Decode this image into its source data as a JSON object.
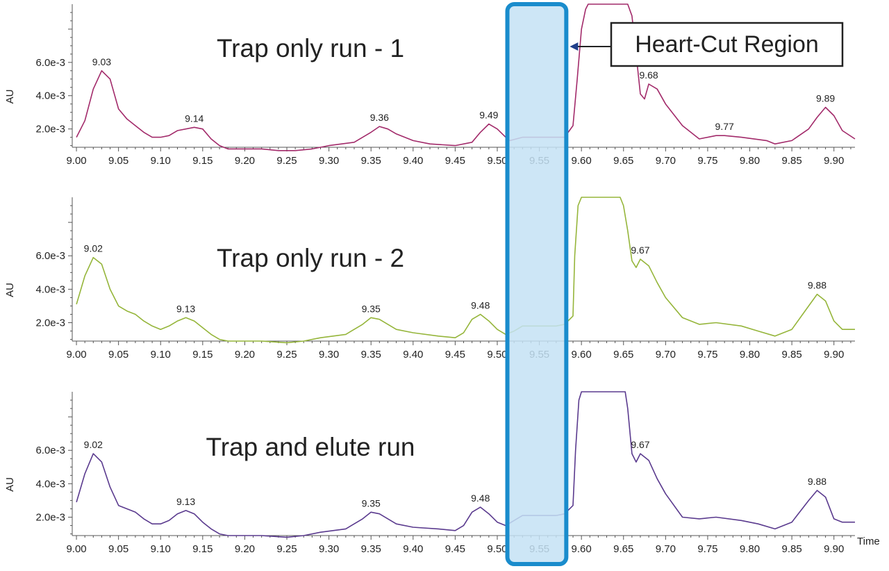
{
  "heart_cut": {
    "label": "Heart-Cut Region",
    "x_range": [
      9.512,
      9.582
    ],
    "fill_color": "#c4e2f4",
    "border_color": "#1a8ccc"
  },
  "x_axis": {
    "label": "Time",
    "ticks": [
      "9.00",
      "9.05",
      "9.10",
      "9.15",
      "9.20",
      "9.25",
      "9.30",
      "9.35",
      "9.40",
      "9.45",
      "9.50",
      "9.55",
      "9.60",
      "9.65",
      "9.70",
      "9.75",
      "9.80",
      "9.85",
      "9.90"
    ]
  },
  "chart_data": [
    {
      "type": "line",
      "title": "Trap only run - 1",
      "ylabel": "AU",
      "y_ticks": [
        "2.0e-3",
        "4.0e-3",
        "6.0e-3"
      ],
      "xlim": [
        8.995,
        9.925
      ],
      "ylim": [
        0.0009,
        0.0095
      ],
      "color": "#a22a6a",
      "flat_top": [
        9.608,
        9.655
      ],
      "peak_labels": [
        {
          "text": "9.03",
          "x": 9.03,
          "y": 0.0055
        },
        {
          "text": "9.14",
          "x": 9.14,
          "y": 0.0021
        },
        {
          "text": "9.36",
          "x": 9.36,
          "y": 0.00215
        },
        {
          "text": "9.49",
          "x": 9.49,
          "y": 0.0023
        },
        {
          "text": "9.68",
          "x": 9.68,
          "y": 0.0047
        },
        {
          "text": "9.77",
          "x": 9.77,
          "y": 0.0016
        },
        {
          "text": "9.89",
          "x": 9.89,
          "y": 0.0033
        }
      ],
      "points": [
        [
          9.0,
          0.0015
        ],
        [
          9.01,
          0.0025
        ],
        [
          9.02,
          0.0044
        ],
        [
          9.03,
          0.0055
        ],
        [
          9.04,
          0.005
        ],
        [
          9.05,
          0.0032
        ],
        [
          9.06,
          0.0026
        ],
        [
          9.07,
          0.0022
        ],
        [
          9.08,
          0.0018
        ],
        [
          9.09,
          0.0015
        ],
        [
          9.1,
          0.0015
        ],
        [
          9.11,
          0.0016
        ],
        [
          9.12,
          0.0019
        ],
        [
          9.14,
          0.0021
        ],
        [
          9.15,
          0.002
        ],
        [
          9.16,
          0.0014
        ],
        [
          9.17,
          0.001
        ],
        [
          9.18,
          0.0008
        ],
        [
          9.19,
          0.0008
        ],
        [
          9.2,
          0.0008
        ],
        [
          9.22,
          0.0008
        ],
        [
          9.24,
          0.0007
        ],
        [
          9.26,
          0.0007
        ],
        [
          9.28,
          0.0008
        ],
        [
          9.3,
          0.001
        ],
        [
          9.33,
          0.0012
        ],
        [
          9.35,
          0.0018
        ],
        [
          9.36,
          0.00215
        ],
        [
          9.37,
          0.002
        ],
        [
          9.38,
          0.0017
        ],
        [
          9.4,
          0.0013
        ],
        [
          9.42,
          0.0011
        ],
        [
          9.45,
          0.001
        ],
        [
          9.47,
          0.0012
        ],
        [
          9.48,
          0.0018
        ],
        [
          9.49,
          0.0023
        ],
        [
          9.5,
          0.002
        ],
        [
          9.51,
          0.0015
        ],
        [
          9.515,
          0.0013
        ],
        [
          9.53,
          0.0015
        ],
        [
          9.55,
          0.0015
        ],
        [
          9.57,
          0.0015
        ],
        [
          9.58,
          0.0015
        ],
        [
          9.59,
          0.0022
        ],
        [
          9.595,
          0.005
        ],
        [
          9.6,
          0.008
        ],
        [
          9.605,
          0.0092
        ],
        [
          9.608,
          0.0095
        ],
        [
          9.655,
          0.0095
        ],
        [
          9.66,
          0.0088
        ],
        [
          9.665,
          0.0065
        ],
        [
          9.67,
          0.0041
        ],
        [
          9.675,
          0.0038
        ],
        [
          9.68,
          0.0047
        ],
        [
          9.69,
          0.0044
        ],
        [
          9.7,
          0.0035
        ],
        [
          9.72,
          0.0022
        ],
        [
          9.74,
          0.0014
        ],
        [
          9.76,
          0.0016
        ],
        [
          9.77,
          0.0016
        ],
        [
          9.79,
          0.0015
        ],
        [
          9.82,
          0.0013
        ],
        [
          9.83,
          0.0011
        ],
        [
          9.85,
          0.0013
        ],
        [
          9.87,
          0.002
        ],
        [
          9.88,
          0.0027
        ],
        [
          9.89,
          0.0033
        ],
        [
          9.9,
          0.0028
        ],
        [
          9.91,
          0.0019
        ],
        [
          9.925,
          0.0014
        ]
      ]
    },
    {
      "type": "line",
      "title": "Trap only run - 2",
      "ylabel": "AU",
      "y_ticks": [
        "2.0e-3",
        "4.0e-3",
        "6.0e-3"
      ],
      "xlim": [
        8.995,
        9.925
      ],
      "ylim": [
        0.0009,
        0.0095
      ],
      "color": "#95b53a",
      "flat_top": [
        9.6,
        9.646
      ],
      "peak_labels": [
        {
          "text": "9.02",
          "x": 9.02,
          "y": 0.0059
        },
        {
          "text": "9.13",
          "x": 9.13,
          "y": 0.0023
        },
        {
          "text": "9.35",
          "x": 9.35,
          "y": 0.0023
        },
        {
          "text": "9.48",
          "x": 9.48,
          "y": 0.0025
        },
        {
          "text": "9.67",
          "x": 9.67,
          "y": 0.0058
        },
        {
          "text": "9.88",
          "x": 9.88,
          "y": 0.0037
        }
      ],
      "points": [
        [
          9.0,
          0.0031
        ],
        [
          9.01,
          0.0048
        ],
        [
          9.02,
          0.0059
        ],
        [
          9.03,
          0.0055
        ],
        [
          9.04,
          0.004
        ],
        [
          9.05,
          0.003
        ],
        [
          9.06,
          0.0027
        ],
        [
          9.07,
          0.0025
        ],
        [
          9.08,
          0.0021
        ],
        [
          9.09,
          0.0018
        ],
        [
          9.1,
          0.0016
        ],
        [
          9.11,
          0.0018
        ],
        [
          9.12,
          0.0021
        ],
        [
          9.13,
          0.0023
        ],
        [
          9.14,
          0.0021
        ],
        [
          9.15,
          0.0017
        ],
        [
          9.16,
          0.0013
        ],
        [
          9.17,
          0.001
        ],
        [
          9.18,
          0.0009
        ],
        [
          9.2,
          0.0009
        ],
        [
          9.22,
          0.0009
        ],
        [
          9.25,
          0.0008
        ],
        [
          9.27,
          0.0009
        ],
        [
          9.29,
          0.0011
        ],
        [
          9.32,
          0.0013
        ],
        [
          9.34,
          0.0019
        ],
        [
          9.35,
          0.0023
        ],
        [
          9.36,
          0.0022
        ],
        [
          9.38,
          0.0016
        ],
        [
          9.4,
          0.0014
        ],
        [
          9.43,
          0.0012
        ],
        [
          9.45,
          0.0011
        ],
        [
          9.46,
          0.0014
        ],
        [
          9.47,
          0.0022
        ],
        [
          9.48,
          0.0025
        ],
        [
          9.49,
          0.0021
        ],
        [
          9.5,
          0.0016
        ],
        [
          9.51,
          0.0013
        ],
        [
          9.52,
          0.0015
        ],
        [
          9.53,
          0.0018
        ],
        [
          9.55,
          0.0018
        ],
        [
          9.57,
          0.0018
        ],
        [
          9.58,
          0.0019
        ],
        [
          9.59,
          0.0024
        ],
        [
          9.592,
          0.006
        ],
        [
          9.596,
          0.009
        ],
        [
          9.6,
          0.0095
        ],
        [
          9.646,
          0.0095
        ],
        [
          9.65,
          0.009
        ],
        [
          9.655,
          0.0075
        ],
        [
          9.66,
          0.0057
        ],
        [
          9.665,
          0.0053
        ],
        [
          9.67,
          0.0058
        ],
        [
          9.68,
          0.0054
        ],
        [
          9.69,
          0.0044
        ],
        [
          9.7,
          0.0035
        ],
        [
          9.72,
          0.0023
        ],
        [
          9.74,
          0.0019
        ],
        [
          9.76,
          0.002
        ],
        [
          9.79,
          0.0018
        ],
        [
          9.81,
          0.0015
        ],
        [
          9.83,
          0.0012
        ],
        [
          9.85,
          0.0016
        ],
        [
          9.87,
          0.003
        ],
        [
          9.88,
          0.0037
        ],
        [
          9.89,
          0.0033
        ],
        [
          9.9,
          0.0021
        ],
        [
          9.91,
          0.0016
        ],
        [
          9.925,
          0.0016
        ]
      ]
    },
    {
      "type": "line",
      "title": "Trap and elute run",
      "ylabel": "AU",
      "y_ticks": [
        "2.0e-3",
        "4.0e-3",
        "6.0e-3"
      ],
      "xlim": [
        8.995,
        9.925
      ],
      "ylim": [
        0.0009,
        0.0095
      ],
      "color": "#5a3a8e",
      "flat_top": [
        9.6,
        9.652
      ],
      "peak_labels": [
        {
          "text": "9.02",
          "x": 9.02,
          "y": 0.0058
        },
        {
          "text": "9.13",
          "x": 9.13,
          "y": 0.0024
        },
        {
          "text": "9.35",
          "x": 9.35,
          "y": 0.0023
        },
        {
          "text": "9.48",
          "x": 9.48,
          "y": 0.0026
        },
        {
          "text": "9.67",
          "x": 9.67,
          "y": 0.0058
        },
        {
          "text": "9.88",
          "x": 9.88,
          "y": 0.0036
        }
      ],
      "points": [
        [
          9.0,
          0.0029
        ],
        [
          9.01,
          0.0046
        ],
        [
          9.02,
          0.0058
        ],
        [
          9.03,
          0.0053
        ],
        [
          9.04,
          0.0038
        ],
        [
          9.05,
          0.0027
        ],
        [
          9.06,
          0.0025
        ],
        [
          9.07,
          0.0023
        ],
        [
          9.08,
          0.0019
        ],
        [
          9.09,
          0.0016
        ],
        [
          9.1,
          0.0016
        ],
        [
          9.11,
          0.0018
        ],
        [
          9.12,
          0.0022
        ],
        [
          9.13,
          0.0024
        ],
        [
          9.14,
          0.0022
        ],
        [
          9.15,
          0.0017
        ],
        [
          9.16,
          0.0013
        ],
        [
          9.17,
          0.001
        ],
        [
          9.18,
          0.0009
        ],
        [
          9.2,
          0.0009
        ],
        [
          9.22,
          0.0009
        ],
        [
          9.25,
          0.0008
        ],
        [
          9.27,
          0.0009
        ],
        [
          9.29,
          0.0011
        ],
        [
          9.32,
          0.0013
        ],
        [
          9.34,
          0.0019
        ],
        [
          9.35,
          0.0023
        ],
        [
          9.36,
          0.0022
        ],
        [
          9.38,
          0.0016
        ],
        [
          9.4,
          0.0014
        ],
        [
          9.43,
          0.0013
        ],
        [
          9.45,
          0.0012
        ],
        [
          9.46,
          0.0015
        ],
        [
          9.47,
          0.0023
        ],
        [
          9.48,
          0.0026
        ],
        [
          9.49,
          0.0022
        ],
        [
          9.5,
          0.0017
        ],
        [
          9.51,
          0.0015
        ],
        [
          9.52,
          0.0018
        ],
        [
          9.53,
          0.0021
        ],
        [
          9.55,
          0.0021
        ],
        [
          9.57,
          0.0021
        ],
        [
          9.58,
          0.0022
        ],
        [
          9.59,
          0.0027
        ],
        [
          9.593,
          0.006
        ],
        [
          9.597,
          0.009
        ],
        [
          9.6,
          0.0095
        ],
        [
          9.652,
          0.0095
        ],
        [
          9.655,
          0.0085
        ],
        [
          9.66,
          0.0058
        ],
        [
          9.665,
          0.0053
        ],
        [
          9.67,
          0.0058
        ],
        [
          9.68,
          0.0054
        ],
        [
          9.69,
          0.0043
        ],
        [
          9.7,
          0.0034
        ],
        [
          9.72,
          0.002
        ],
        [
          9.74,
          0.0019
        ],
        [
          9.76,
          0.002
        ],
        [
          9.79,
          0.0018
        ],
        [
          9.81,
          0.0016
        ],
        [
          9.83,
          0.0013
        ],
        [
          9.85,
          0.0017
        ],
        [
          9.87,
          0.003
        ],
        [
          9.88,
          0.0036
        ],
        [
          9.89,
          0.0032
        ],
        [
          9.9,
          0.0019
        ],
        [
          9.91,
          0.0017
        ],
        [
          9.925,
          0.0017
        ]
      ]
    }
  ]
}
